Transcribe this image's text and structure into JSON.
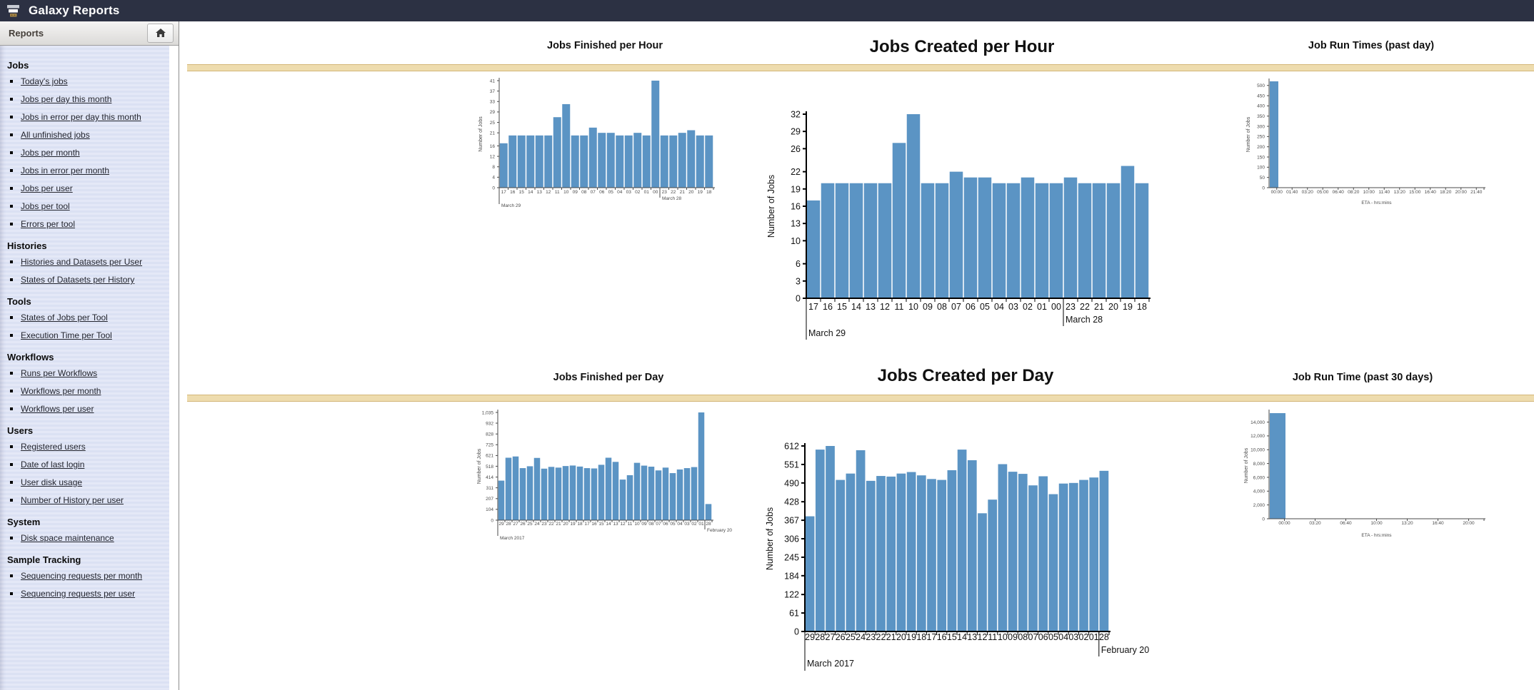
{
  "app": {
    "title": "Galaxy Reports"
  },
  "colors": {
    "topbar": "#2c3143",
    "bar_fill": "#5b94c4",
    "band_fill": "#eedcae",
    "band_border": "#d3b678",
    "sidebar_stripe": "#dde2f4",
    "link": "#23252e"
  },
  "sidebar": {
    "header": "Reports",
    "sections": [
      {
        "title": "Jobs",
        "items": [
          "Today's jobs",
          "Jobs per day this month",
          "Jobs in error per day this month",
          "All unfinished jobs",
          "Jobs per month",
          "Jobs in error per month",
          "Jobs per user",
          "Jobs per tool",
          "Errors per tool"
        ]
      },
      {
        "title": "Histories",
        "items": [
          "Histories and Datasets per User",
          "States of Datasets per History"
        ]
      },
      {
        "title": "Tools",
        "items": [
          "States of Jobs per Tool",
          "Execution Time per Tool"
        ]
      },
      {
        "title": "Workflows",
        "items": [
          "Runs per Workflows",
          "Workflows per month",
          "Workflows per user"
        ]
      },
      {
        "title": "Users",
        "items": [
          "Registered users",
          "Date of last login",
          "User disk usage",
          "Number of History per user"
        ]
      },
      {
        "title": "System",
        "items": [
          "Disk space maintenance"
        ]
      },
      {
        "title": "Sample Tracking",
        "items": [
          "Sequencing requests per month",
          "Sequencing requests per user"
        ]
      }
    ]
  },
  "chart_data": [
    {
      "id": "jobs_finished_per_hour",
      "type": "bar",
      "title": "Jobs Finished per Hour",
      "xlabel": "",
      "ylabel": "Number of Jobs",
      "categories": [
        "17",
        "16",
        "15",
        "14",
        "13",
        "12",
        "11",
        "10",
        "09",
        "08",
        "07",
        "06",
        "05",
        "04",
        "03",
        "02",
        "01",
        "00",
        "23",
        "22",
        "21",
        "20",
        "19",
        "18"
      ],
      "values": [
        17,
        20,
        20,
        20,
        20,
        20,
        27,
        32,
        20,
        20,
        23,
        21,
        21,
        20,
        20,
        21,
        20,
        41,
        20,
        20,
        21,
        22,
        20,
        20
      ],
      "yticks": [
        0,
        4,
        8,
        12,
        16,
        21,
        25,
        29,
        33,
        37,
        41
      ],
      "ylim": [
        0,
        41
      ],
      "grid": false,
      "legend": "none",
      "periods": [
        {
          "label": "March 29",
          "start": 0
        },
        {
          "label": "March 28",
          "start": 18
        }
      ]
    },
    {
      "id": "jobs_created_per_hour",
      "type": "bar",
      "title": "Jobs Created per Hour",
      "xlabel": "",
      "ylabel": "Number of Jobs",
      "categories": [
        "17",
        "16",
        "15",
        "14",
        "13",
        "12",
        "11",
        "10",
        "09",
        "08",
        "07",
        "06",
        "05",
        "04",
        "03",
        "02",
        "01",
        "00",
        "23",
        "22",
        "21",
        "20",
        "19",
        "18"
      ],
      "values": [
        17,
        20,
        20,
        20,
        20,
        20,
        27,
        32,
        20,
        20,
        22,
        21,
        21,
        20,
        20,
        21,
        20,
        20,
        21,
        20,
        20,
        20,
        23,
        20
      ],
      "yticks": [
        0,
        3,
        6,
        10,
        13,
        16,
        19,
        22,
        26,
        29,
        32
      ],
      "ylim": [
        0,
        32
      ],
      "grid": false,
      "legend": "none",
      "periods": [
        {
          "label": "March 29",
          "start": 0
        },
        {
          "label": "March 28",
          "start": 18
        }
      ]
    },
    {
      "id": "job_run_times_past_day",
      "type": "bar",
      "title": "Job Run Times (past day)",
      "xlabel": "ETA - hrs:mins",
      "ylabel": "Number of Jobs",
      "categories": [
        "00:00",
        "01:40",
        "03:20",
        "05:00",
        "06:40",
        "08:20",
        "10:00",
        "11:40",
        "13:20",
        "15:00",
        "16:40",
        "18:20",
        "20:00",
        "21:40"
      ],
      "values": [
        520,
        0,
        0,
        0,
        0,
        0,
        0,
        0,
        0,
        0,
        0,
        0,
        0,
        0
      ],
      "yticks": [
        0,
        50,
        100,
        150,
        200,
        250,
        300,
        350,
        400,
        450,
        500
      ],
      "ylim": [
        0,
        520
      ],
      "grid": false,
      "legend": "none",
      "periods": []
    },
    {
      "id": "jobs_finished_per_day",
      "type": "bar",
      "title": "Jobs Finished per Day",
      "xlabel": "",
      "ylabel": "Number of Jobs",
      "categories": [
        "29",
        "28",
        "27",
        "26",
        "25",
        "24",
        "23",
        "22",
        "21",
        "20",
        "19",
        "18",
        "17",
        "16",
        "15",
        "14",
        "13",
        "12",
        "11",
        "10",
        "09",
        "08",
        "07",
        "06",
        "05",
        "04",
        "03",
        "02",
        "01",
        "28"
      ],
      "values": [
        380,
        600,
        612,
        500,
        518,
        598,
        495,
        512,
        505,
        520,
        525,
        515,
        500,
        497,
        532,
        600,
        560,
        390,
        432,
        551,
        524,
        514,
        478,
        505,
        452,
        487,
        500,
        510,
        1035,
        155
      ],
      "yticks": [
        0,
        104,
        207,
        311,
        414,
        518,
        621,
        725,
        828,
        932,
        1035
      ],
      "ylim": [
        0,
        1035
      ],
      "grid": false,
      "legend": "none",
      "periods": [
        {
          "label": "March 2017",
          "start": 0
        },
        {
          "label": "February 20",
          "start": 29
        }
      ]
    },
    {
      "id": "jobs_created_per_day",
      "type": "bar",
      "title": "Jobs Created per Day",
      "xlabel": "",
      "ylabel": "Number of Jobs",
      "categories": [
        "29",
        "28",
        "27",
        "26",
        "25",
        "24",
        "23",
        "22",
        "21",
        "20",
        "19",
        "18",
        "17",
        "16",
        "15",
        "14",
        "13",
        "12",
        "11",
        "10",
        "09",
        "08",
        "07",
        "06",
        "05",
        "04",
        "03",
        "02",
        "01",
        "28"
      ],
      "values": [
        380,
        600,
        612,
        500,
        521,
        598,
        497,
        513,
        511,
        521,
        526,
        515,
        503,
        500,
        532,
        600,
        565,
        390,
        435,
        552,
        527,
        520,
        482,
        512,
        453,
        488,
        490,
        500,
        508,
        530
      ],
      "yticks": [
        0,
        61,
        122,
        184,
        245,
        306,
        367,
        428,
        490,
        551,
        612
      ],
      "ylim": [
        0,
        612
      ],
      "grid": false,
      "legend": "none",
      "periods": [
        {
          "label": "March 2017",
          "start": 0
        },
        {
          "label": "February 20",
          "start": 29
        }
      ]
    },
    {
      "id": "job_run_time_past_30_days",
      "type": "bar",
      "title": "Job Run Time (past 30 days)",
      "xlabel": "ETA - hrs:mins",
      "ylabel": "Number of Jobs",
      "categories": [
        "00:00",
        "03:20",
        "06:40",
        "10:00",
        "13:20",
        "16:40",
        "20:00"
      ],
      "values": [
        15300,
        0,
        0,
        0,
        0,
        0,
        0
      ],
      "yticks": [
        0,
        2000,
        4000,
        6000,
        8000,
        10000,
        12000,
        14000
      ],
      "ylim": [
        0,
        15400
      ],
      "grid": false,
      "legend": "none",
      "periods": []
    }
  ]
}
